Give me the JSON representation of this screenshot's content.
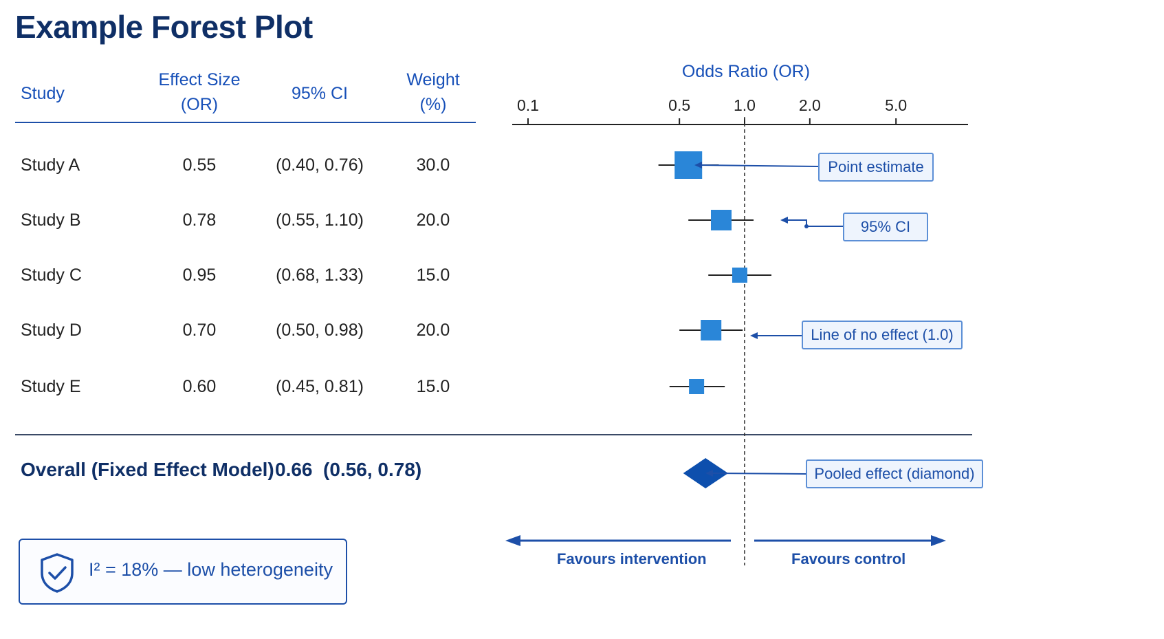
{
  "title": "Example Forest Plot",
  "table": {
    "headers": {
      "study": "Study",
      "effect_line1": "Effect Size",
      "effect_line2": "(OR)",
      "ci": "95% CI",
      "weight_line1": "Weight",
      "weight_line2": "(%)"
    },
    "rows": [
      {
        "study": "Study A",
        "or": "0.55",
        "ci": "(0.40, 0.76)",
        "weight": "30.0"
      },
      {
        "study": "Study B",
        "or": "0.78",
        "ci": "(0.55, 1.10)",
        "weight": "20.0"
      },
      {
        "study": "Study C",
        "or": "0.95",
        "ci": "(0.68, 1.33)",
        "weight": "15.0"
      },
      {
        "study": "Study D",
        "or": "0.70",
        "ci": "(0.50, 0.98)",
        "weight": "20.0"
      },
      {
        "study": "Study E",
        "or": "0.60",
        "ci": "(0.45, 0.81)",
        "weight": "15.0"
      }
    ],
    "overall_label": "Overall (Fixed Effect Model)",
    "overall_value": "0.66  (0.56, 0.78)"
  },
  "heterogeneity": {
    "icon": "shield-check-icon",
    "text": "I² = 18% — low heterogeneity"
  },
  "annotations": {
    "point_estimate": "Point estimate",
    "ci": "95% CI",
    "line_no_effect": "Line of no effect (1.0)",
    "pooled": "Pooled effect (diamond)"
  },
  "favours": {
    "left": "Favours intervention",
    "right": "Favours control"
  },
  "colors": {
    "accent": "#2a86d8",
    "dark": "#0f2f66",
    "diamond": "#0d4fad",
    "line": "#1d4fa8"
  },
  "chart_data": {
    "type": "forest",
    "title": "Odds Ratio (OR)",
    "x_scale": "log",
    "x_ticks": [
      {
        "value": 0.1,
        "label": "0.1"
      },
      {
        "value": 0.5,
        "label": "0.5"
      },
      {
        "value": 1.0,
        "label": "1.0"
      },
      {
        "value": 2.0,
        "label": "2.0"
      },
      {
        "value": 5.0,
        "label": "5.0"
      }
    ],
    "reference_line": 1.0,
    "studies": [
      {
        "name": "Study A",
        "or": 0.55,
        "lo": 0.4,
        "hi": 0.76,
        "weight": 30.0
      },
      {
        "name": "Study B",
        "or": 0.78,
        "lo": 0.55,
        "hi": 1.1,
        "weight": 20.0
      },
      {
        "name": "Study C",
        "or": 0.95,
        "lo": 0.68,
        "hi": 1.33,
        "weight": 15.0
      },
      {
        "name": "Study D",
        "or": 0.7,
        "lo": 0.5,
        "hi": 0.98,
        "weight": 20.0
      },
      {
        "name": "Study E",
        "or": 0.6,
        "lo": 0.45,
        "hi": 0.81,
        "weight": 15.0
      }
    ],
    "pooled": {
      "or": 0.66,
      "lo": 0.56,
      "hi": 0.78
    }
  }
}
